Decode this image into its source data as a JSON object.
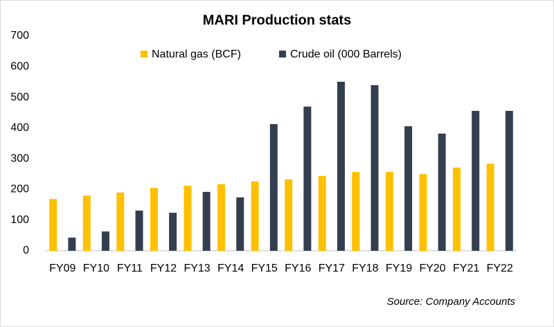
{
  "chart_data": {
    "type": "bar",
    "title": "MARI Production stats",
    "categories": [
      "FY09",
      "FY10",
      "FY11",
      "FY12",
      "FY13",
      "FY14",
      "FY15",
      "FY16",
      "FY17",
      "FY18",
      "FY19",
      "FY20",
      "FY21",
      "FY22"
    ],
    "series": [
      {
        "name": "Natural gas (BCF)",
        "color": "#ffc000",
        "values": [
          169,
          180,
          190,
          205,
          212,
          217,
          226,
          233,
          244,
          257,
          257,
          250,
          271,
          284
        ]
      },
      {
        "name": "Crude oil (000 Barrels)",
        "color": "#333f4f",
        "values": [
          43,
          63,
          131,
          124,
          192,
          174,
          413,
          470,
          551,
          540,
          406,
          382,
          456,
          456
        ]
      }
    ],
    "ylim": [
      0,
      700
    ],
    "yticks": [
      0,
      100,
      200,
      300,
      400,
      500,
      600,
      700
    ],
    "grid": false,
    "legend": "top",
    "source": "Source: Company Accounts"
  }
}
